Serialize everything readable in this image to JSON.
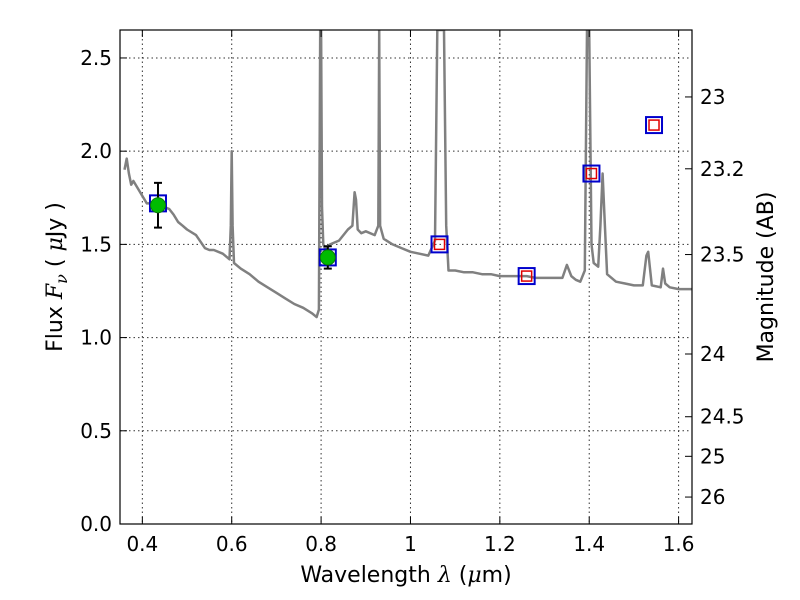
{
  "chart_data": {
    "type": "scatter",
    "title": "",
    "xlabel": "Wavelength  λ (μm)",
    "ylabel": "Flux  Fν  ( μJy )",
    "y2label": "Magnitude (AB)",
    "xlim": [
      0.35,
      1.63
    ],
    "ylim": [
      0.0,
      2.65
    ],
    "grid": true,
    "x_ticks": [
      0.4,
      0.6,
      0.8,
      1.0,
      1.2,
      1.4,
      1.6
    ],
    "x_tick_labels": [
      "0.4",
      "0.6",
      "0.8",
      "1",
      "1.2",
      "1.4",
      "1.6"
    ],
    "y_ticks": [
      0.0,
      0.5,
      1.0,
      1.5,
      2.0,
      2.5
    ],
    "y_tick_labels": [
      "0.0",
      "0.5",
      "1.0",
      "1.5",
      "2.0",
      "2.5"
    ],
    "y2_ticks": [
      23,
      23.2,
      23.5,
      24,
      24.5,
      25,
      26
    ],
    "y2_tick_labels": [
      "23",
      "23.2",
      "23.5",
      "24",
      "24.5",
      "25",
      "26"
    ],
    "colors": {
      "spectrum": "#808080",
      "model_marker": "#0000cc",
      "observed_marker": "#e00000",
      "detection_marker": "#00bb00",
      "errorbar": "#000000"
    },
    "series": [
      {
        "kind": "line",
        "x": [
          0.36,
          0.365,
          0.37,
          0.375,
          0.38,
          0.39,
          0.4,
          0.41,
          0.42,
          0.43,
          0.44,
          0.45,
          0.46,
          0.47,
          0.48,
          0.49,
          0.5,
          0.52,
          0.54,
          0.55,
          0.56,
          0.58,
          0.595,
          0.598,
          0.6,
          0.602,
          0.605,
          0.62,
          0.64,
          0.66,
          0.68,
          0.7,
          0.72,
          0.74,
          0.76,
          0.78,
          0.79,
          0.795,
          0.798,
          0.8,
          0.802,
          0.805,
          0.81,
          0.82,
          0.84,
          0.86,
          0.87,
          0.875,
          0.878,
          0.882,
          0.89,
          0.9,
          0.92,
          0.928,
          0.93,
          0.932,
          0.94,
          0.96,
          0.98,
          1.0,
          1.02,
          1.04,
          1.055,
          1.06,
          1.065,
          1.07,
          1.075,
          1.08,
          1.085,
          1.1,
          1.12,
          1.14,
          1.16,
          1.18,
          1.2,
          1.22,
          1.24,
          1.26,
          1.28,
          1.3,
          1.32,
          1.34,
          1.35,
          1.36,
          1.37,
          1.38,
          1.39,
          1.395,
          1.4,
          1.405,
          1.41,
          1.42,
          1.425,
          1.43,
          1.435,
          1.44,
          1.46,
          1.48,
          1.5,
          1.52,
          1.528,
          1.532,
          1.54,
          1.56,
          1.565,
          1.57,
          1.58,
          1.6,
          1.62,
          1.63
        ],
        "y": [
          1.9,
          1.96,
          1.88,
          1.82,
          1.84,
          1.8,
          1.76,
          1.72,
          1.72,
          1.7,
          1.71,
          1.7,
          1.69,
          1.66,
          1.62,
          1.6,
          1.58,
          1.55,
          1.48,
          1.47,
          1.47,
          1.45,
          1.42,
          1.6,
          2.0,
          1.6,
          1.4,
          1.37,
          1.34,
          1.3,
          1.27,
          1.24,
          1.21,
          1.18,
          1.16,
          1.13,
          1.11,
          1.15,
          2.65,
          2.65,
          1.7,
          1.5,
          1.47,
          1.5,
          1.52,
          1.58,
          1.6,
          1.78,
          1.74,
          1.58,
          1.56,
          1.57,
          1.55,
          1.6,
          2.65,
          1.6,
          1.53,
          1.5,
          1.48,
          1.46,
          1.45,
          1.44,
          1.52,
          2.65,
          2.65,
          2.65,
          2.65,
          1.6,
          1.36,
          1.36,
          1.35,
          1.35,
          1.34,
          1.34,
          1.33,
          1.33,
          1.33,
          1.33,
          1.32,
          1.32,
          1.32,
          1.32,
          1.39,
          1.33,
          1.31,
          1.3,
          1.36,
          2.65,
          2.65,
          1.5,
          1.4,
          1.38,
          1.6,
          1.88,
          1.6,
          1.34,
          1.3,
          1.29,
          1.28,
          1.28,
          1.44,
          1.46,
          1.28,
          1.27,
          1.37,
          1.29,
          1.27,
          1.26,
          1.26,
          1.26
        ]
      },
      {
        "kind": "squares-model",
        "x": [
          0.435,
          0.815,
          1.065,
          1.26,
          1.405,
          1.545
        ],
        "y": [
          1.72,
          1.43,
          1.5,
          1.33,
          1.88,
          2.14
        ]
      },
      {
        "kind": "squares-observed",
        "x": [
          1.065,
          1.26,
          1.405,
          1.545
        ],
        "y": [
          1.5,
          1.33,
          1.88,
          2.14
        ]
      },
      {
        "kind": "detections",
        "x": [
          0.435,
          0.815
        ],
        "y": [
          1.71,
          1.43
        ],
        "yerr": [
          0.12,
          0.06
        ]
      }
    ]
  }
}
